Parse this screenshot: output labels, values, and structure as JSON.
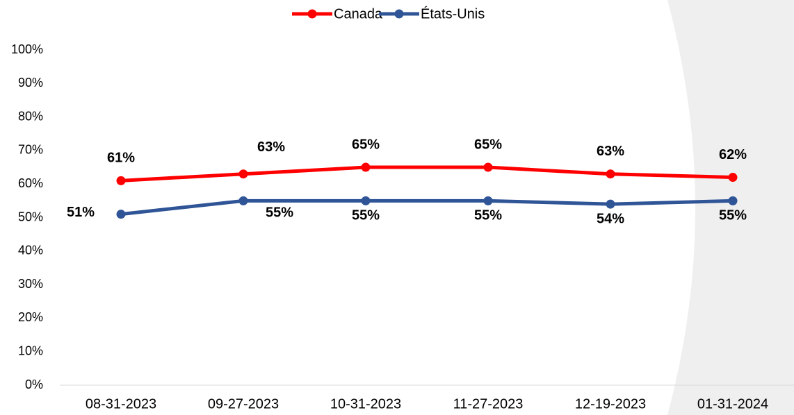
{
  "chart_data": {
    "type": "line",
    "categories": [
      "08-31-2023",
      "09-27-2023",
      "10-31-2023",
      "11-27-2023",
      "12-19-2023",
      "01-31-2024"
    ],
    "series": [
      {
        "name": "Canada",
        "color": "#ff0000",
        "values": [
          61,
          63,
          65,
          65,
          63,
          62
        ],
        "value_labels": [
          "61%",
          "63%",
          "65%",
          "65%",
          "63%",
          "62%"
        ]
      },
      {
        "name": "États-Unis",
        "color": "#2f5597",
        "values": [
          51,
          55,
          55,
          55,
          54,
          55
        ],
        "value_labels": [
          "51%",
          "55%",
          "55%",
          "55%",
          "54%",
          "55%"
        ]
      }
    ],
    "ylim": [
      0,
      100
    ],
    "yticks": [
      {
        "value": 0,
        "label": "0%"
      },
      {
        "value": 10,
        "label": "10%"
      },
      {
        "value": 20,
        "label": "20%"
      },
      {
        "value": 30,
        "label": "30%"
      },
      {
        "value": 40,
        "label": "40%"
      },
      {
        "value": 50,
        "label": "50%"
      },
      {
        "value": 60,
        "label": "60%"
      },
      {
        "value": 70,
        "label": "70%"
      },
      {
        "value": 80,
        "label": "80%"
      },
      {
        "value": 90,
        "label": "90%"
      },
      {
        "value": 100,
        "label": "100%"
      }
    ],
    "legend": "top"
  }
}
